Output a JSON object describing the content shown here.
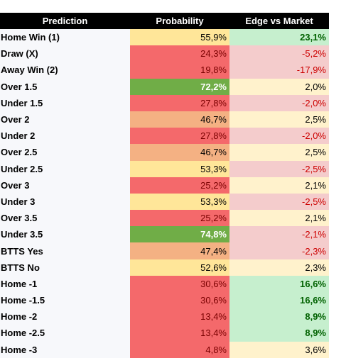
{
  "table": {
    "columns": [
      "Prediction",
      "Probability",
      "Edge vs Market"
    ],
    "rows": [
      [
        "Home Win (1)",
        "55,9%",
        "23,1%"
      ],
      [
        "Draw (X)",
        "24,3%",
        "-5,2%"
      ],
      [
        "Away Win (2)",
        "19,8%",
        "-17,9%"
      ],
      [
        "Over 1.5",
        "72,2%",
        "2,0%"
      ],
      [
        "Under 1.5",
        "27,8%",
        "-2,0%"
      ],
      [
        "Over 2",
        "46,7%",
        "2,5%"
      ],
      [
        "Under 2",
        "27,8%",
        "-2,0%"
      ],
      [
        "Over 2.5",
        "46,7%",
        "2,5%"
      ],
      [
        "Under 2.5",
        "53,3%",
        "-2,5%"
      ],
      [
        "Over 3",
        "25,2%",
        "2,1%"
      ],
      [
        "Under 3",
        "53,3%",
        "-2,5%"
      ],
      [
        "Over 3.5",
        "25,2%",
        "2,1%"
      ],
      [
        "Under 3.5",
        "74,8%",
        "-2,1%"
      ],
      [
        "BTTS Yes",
        "47,4%",
        "-2,3%"
      ],
      [
        "BTTS No",
        "52,6%",
        "2,3%"
      ],
      [
        "Home -1",
        "30,6%",
        "16,6%"
      ],
      [
        "Home -1.5",
        "30,6%",
        "16,6%"
      ],
      [
        "Home -2",
        "13,4%",
        "8,9%"
      ],
      [
        "Home -2.5",
        "13,4%",
        "8,9%"
      ],
      [
        "Home -3",
        "4,8%",
        "3,6%"
      ]
    ]
  }
}
